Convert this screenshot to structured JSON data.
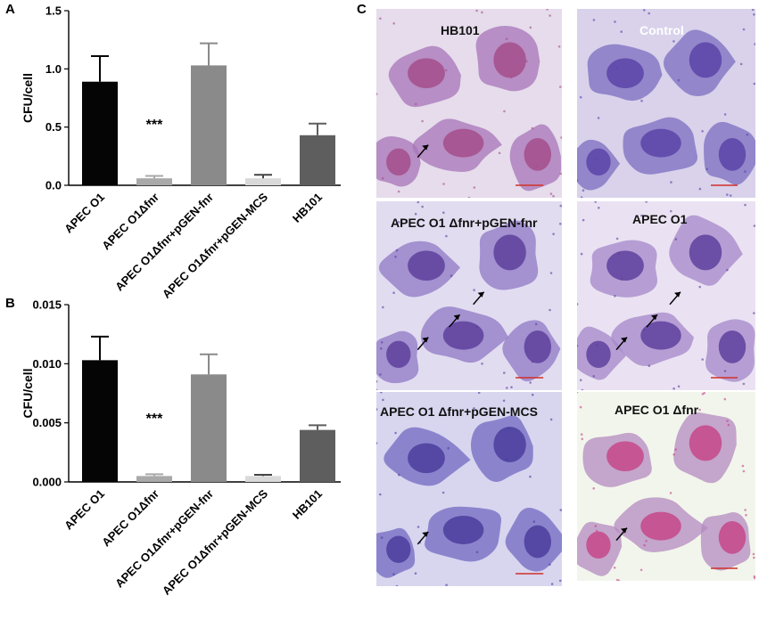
{
  "panel_letters": {
    "a": "A",
    "b": "B",
    "c": "C"
  },
  "chart_data": [
    {
      "type": "bar",
      "panel": "A",
      "ylabel": "CFU/cell",
      "ylim": [
        0,
        1.5
      ],
      "yticks": [
        "0.0",
        "0.5",
        "1.0",
        "1.5"
      ],
      "categories": [
        "APEC O1",
        "APEC O1Δfnr",
        "APEC O1Δfnr+pGEN-fnr",
        "APEC O1Δfnr+pGEN-MCS",
        "HB101"
      ],
      "values": [
        0.89,
        0.06,
        1.03,
        0.06,
        0.43
      ],
      "errors": [
        0.22,
        0.02,
        0.19,
        0.03,
        0.1
      ],
      "colors": [
        "#050505",
        "#a9a9a9",
        "#8a8a8a",
        "#d9d9d9",
        "#5e5e5e"
      ],
      "annotation": {
        "text": "***",
        "category_index": 1
      }
    },
    {
      "type": "bar",
      "panel": "B",
      "ylabel": "CFU/cell",
      "ylim": [
        0,
        0.015
      ],
      "yticks": [
        "0.000",
        "0.005",
        "0.010",
        "0.015"
      ],
      "categories": [
        "APEC O1",
        "APEC O1Δfnr",
        "APEC O1Δfnr+pGEN-fnr",
        "APEC O1Δfnr+pGEN-MCS",
        "HB101"
      ],
      "values": [
        0.0103,
        0.0005,
        0.0091,
        0.0005,
        0.0044
      ],
      "errors": [
        0.002,
        0.00015,
        0.0017,
        0.0001,
        0.0004
      ],
      "colors": [
        "#050505",
        "#a9a9a9",
        "#8a8a8a",
        "#d9d9d9",
        "#5e5e5e"
      ],
      "annotation": {
        "text": "***",
        "category_index": 1
      }
    }
  ],
  "micrographs": [
    {
      "label": "HB101",
      "label_color": "#111111",
      "bg": "#e6dcec",
      "cell": "#a774b8",
      "nucleus": "#a54e8a",
      "arrows": 1
    },
    {
      "label": "Control",
      "label_color": "#ffffff",
      "bg": "#d9d2ea",
      "cell": "#7b6cc0",
      "nucleus": "#5a44a8",
      "arrows": 0
    },
    {
      "label": "APEC O1 Δfnr+pGEN-fnr",
      "label_color": "#111111",
      "bg": "#e2dcf0",
      "cell": "#8d78c6",
      "nucleus": "#5e3f9c",
      "arrows": 3
    },
    {
      "label": "APEC O1",
      "label_color": "#111111",
      "bg": "#eae2f2",
      "cell": "#a487c9",
      "nucleus": "#5e3f9c",
      "arrows": 3
    },
    {
      "label": "APEC O1 Δfnr+pGEN-MCS",
      "label_color": "#111111",
      "bg": "#d8d6ef",
      "cell": "#7268c2",
      "nucleus": "#4b3d9c",
      "arrows": 1
    },
    {
      "label": "APEC O1 Δfnr",
      "label_color": "#111111",
      "bg": "#f2f5ec",
      "cell": "#b48ac0",
      "nucleus": "#c5468a",
      "arrows": 1
    }
  ]
}
